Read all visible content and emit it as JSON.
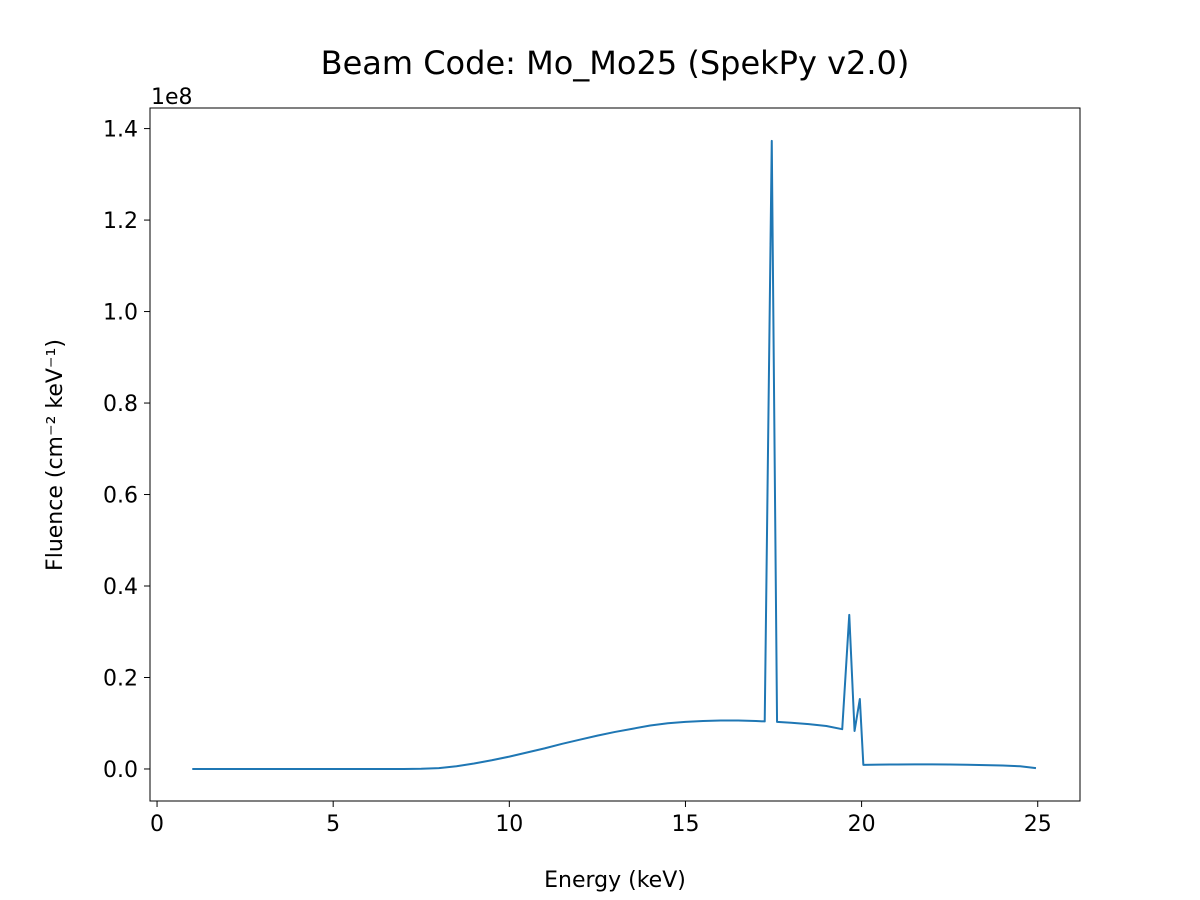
{
  "chart_data": {
    "type": "line",
    "title": "Beam Code: Mo_Mo25 (SpekPy v2.0)",
    "xlabel": "Energy (keV)",
    "ylabel": "Fluence (cm⁻² keV⁻¹)",
    "y_offset_label": "1e8",
    "xlim": [
      -0.2,
      26.2
    ],
    "ylim": [
      -0.07,
      1.445
    ],
    "y_scale_factor": 100000000,
    "xticks": [
      0,
      5,
      10,
      15,
      20,
      25
    ],
    "xtick_labels": [
      "0",
      "5",
      "10",
      "15",
      "20",
      "25"
    ],
    "yticks": [
      0.0,
      0.2,
      0.4,
      0.6,
      0.8,
      1.0,
      1.2,
      1.4
    ],
    "ytick_labels": [
      "0.0",
      "0.2",
      "0.4",
      "0.6",
      "0.8",
      "1.0",
      "1.2",
      "1.4"
    ],
    "grid": false,
    "series": [
      {
        "color": "#1f77b4",
        "x": [
          1.0,
          2.0,
          3.0,
          4.0,
          5.0,
          6.0,
          7.0,
          7.5,
          8.0,
          8.5,
          9.0,
          9.5,
          10.0,
          10.5,
          11.0,
          11.5,
          12.0,
          12.5,
          13.0,
          13.5,
          14.0,
          14.5,
          15.0,
          15.5,
          16.0,
          16.5,
          17.0,
          17.25,
          17.45,
          17.6,
          18.0,
          18.5,
          19.0,
          19.45,
          19.65,
          19.8,
          19.95,
          20.05,
          20.5,
          21.0,
          21.5,
          22.0,
          22.5,
          23.0,
          23.5,
          24.0,
          24.5,
          24.95
        ],
        "values": [
          0.0,
          0.0,
          0.0,
          0.0,
          0.0,
          0.0,
          0.0,
          0.0005,
          0.002,
          0.006,
          0.012,
          0.019,
          0.027,
          0.036,
          0.045,
          0.055,
          0.064,
          0.073,
          0.081,
          0.088,
          0.095,
          0.1,
          0.103,
          0.105,
          0.106,
          0.106,
          0.105,
          0.104,
          1.373,
          0.103,
          0.101,
          0.098,
          0.094,
          0.087,
          0.337,
          0.083,
          0.153,
          0.009,
          0.0095,
          0.0098,
          0.01,
          0.01,
          0.0097,
          0.0092,
          0.0085,
          0.0075,
          0.006,
          0.002
        ]
      }
    ]
  }
}
